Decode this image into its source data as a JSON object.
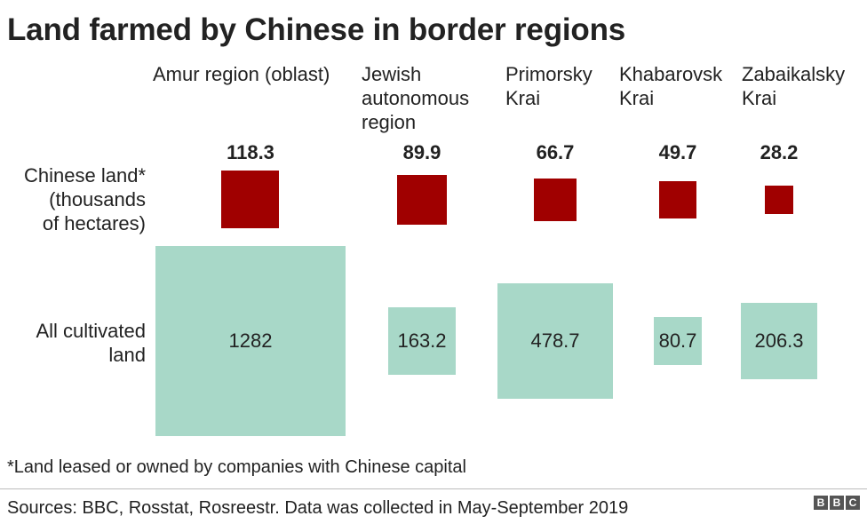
{
  "title": "Land farmed by Chinese in border regions",
  "row_labels": {
    "chinese": "Chinese land*\n(thousands\nof hectares)",
    "total": "All cultivated\nland"
  },
  "colors": {
    "chinese": "#a00000",
    "total": "#a8d8c8"
  },
  "chart_data": {
    "type": "proportional-square",
    "title": "Land farmed by Chinese in border regions",
    "categories": [
      "Amur region (oblast)",
      "Jewish\nautonomous\nregion",
      "Primorsky\nKrai",
      "Khabarovsk\nKrai",
      "Zabaikalsky\nKrai"
    ],
    "series": [
      {
        "name": "Chinese land* (thousands of hectares)",
        "values": [
          118.3,
          89.9,
          66.7,
          49.7,
          28.2
        ]
      },
      {
        "name": "All cultivated land",
        "values": [
          1282,
          163.2,
          478.7,
          80.7,
          206.3
        ]
      }
    ],
    "chinese_labels": [
      "118.3",
      "89.9",
      "66.7",
      "49.7",
      "28.2"
    ],
    "total_labels": [
      "1282",
      "163.2",
      "478.7",
      "80.7",
      "206.3"
    ]
  },
  "footnote": "*Land leased or owned by companies with Chinese capital",
  "source": "Sources: BBC, Rosstat, Rosreestr. Data was collected in May-September 2019",
  "logo": [
    "B",
    "B",
    "C"
  ]
}
